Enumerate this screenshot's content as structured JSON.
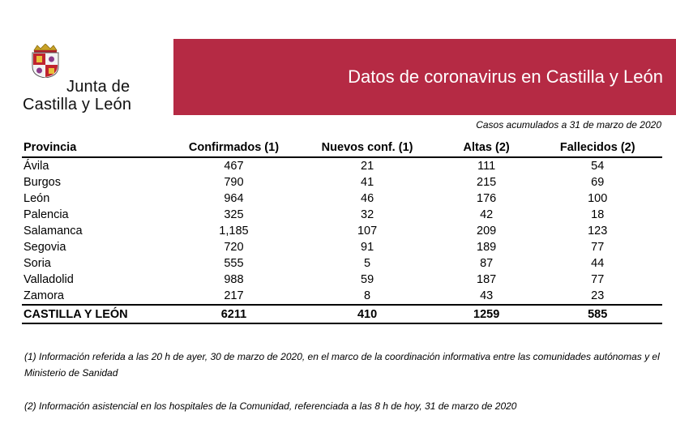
{
  "logo": {
    "line1": "Junta de",
    "line2": "Castilla y León"
  },
  "banner": {
    "title": "Datos de coronavirus en Castilla y León",
    "color": "#b52a44"
  },
  "subtitle": "Casos acumulados a 31 de marzo de 2020",
  "table": {
    "headers": [
      "Provincia",
      "Confirmados (1)",
      "Nuevos conf. (1)",
      "Altas (2)",
      "Fallecidos (2)"
    ],
    "rows": [
      [
        "Ávila",
        "467",
        "21",
        "111",
        "54"
      ],
      [
        "Burgos",
        "790",
        "41",
        "215",
        "69"
      ],
      [
        "León",
        "964",
        "46",
        "176",
        "100"
      ],
      [
        "Palencia",
        "325",
        "32",
        "42",
        "18"
      ],
      [
        "Salamanca",
        "1,185",
        "107",
        "209",
        "123"
      ],
      [
        "Segovia",
        "720",
        "91",
        "189",
        "77"
      ],
      [
        "Soria",
        "555",
        "5",
        "87",
        "44"
      ],
      [
        "Valladolid",
        "988",
        "59",
        "187",
        "77"
      ],
      [
        "Zamora",
        "217",
        "8",
        "43",
        "23"
      ]
    ],
    "total": [
      "CASTILLA Y LEÓN",
      "6211",
      "410",
      "1259",
      "585"
    ]
  },
  "notes": [
    "(1) Información referida a las 20 h de ayer, 30 de marzo de 2020, en el marco de la coordinación informativa entre las comunidades autónomas y el Ministerio de Sanidad",
    "(2) Información asistencial en los hospitales de la Comunidad, referenciada a las 8 h de hoy, 31 de marzo de 2020"
  ]
}
